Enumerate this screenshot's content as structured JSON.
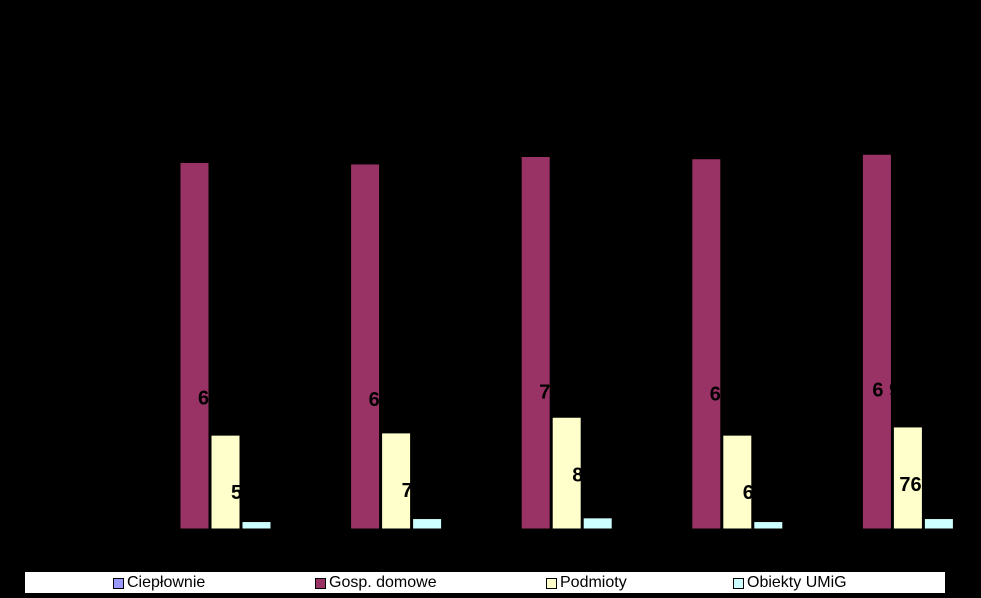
{
  "chart_data": {
    "type": "bar",
    "title": "",
    "xlabel": "",
    "ylabel": "",
    "ylim": [
      0,
      6
    ],
    "grid": false,
    "legend_position": "bottom",
    "categories": [
      "",
      "",
      "",
      "",
      ""
    ],
    "series": [
      {
        "name": "Ciepłownie",
        "color": "#9999ff",
        "values": [
          0,
          0,
          0,
          0,
          0
        ]
      },
      {
        "name": "Gosp. domowe",
        "color": "#993366",
        "values": [
          4.92,
          4.9,
          5.0,
          4.97,
          5.03
        ]
      },
      {
        "name": "Podmioty",
        "color": "#ffffcc",
        "values": [
          1.26,
          1.29,
          1.5,
          1.26,
          1.37
        ]
      },
      {
        "name": "Obiekty UMiG",
        "color": "#ccffff",
        "values": [
          0.1,
          0.14,
          0.15,
          0.1,
          0.14
        ]
      }
    ],
    "data_labels": [
      {
        "category_index": 0,
        "series_index": 1,
        "text": "6"
      },
      {
        "category_index": 0,
        "series_index": 2,
        "text": "5"
      },
      {
        "category_index": 1,
        "series_index": 1,
        "text": "6"
      },
      {
        "category_index": 1,
        "series_index": 2,
        "text": "7"
      },
      {
        "category_index": 2,
        "series_index": 1,
        "text": "7"
      },
      {
        "category_index": 2,
        "series_index": 2,
        "text": "8"
      },
      {
        "category_index": 3,
        "series_index": 1,
        "text": "6"
      },
      {
        "category_index": 3,
        "series_index": 2,
        "text": "6"
      },
      {
        "category_index": 4,
        "series_index": 1,
        "text": "6 9"
      },
      {
        "category_index": 4,
        "series_index": 2,
        "text": "762"
      }
    ]
  },
  "legend": {
    "items": [
      {
        "label": "Ciepłownie",
        "color": "#9999ff"
      },
      {
        "label": "Gosp. domowe",
        "color": "#993366"
      },
      {
        "label": "Podmioty",
        "color": "#ffffcc"
      },
      {
        "label": "Obiekty UMiG",
        "color": "#ccffff"
      }
    ]
  }
}
